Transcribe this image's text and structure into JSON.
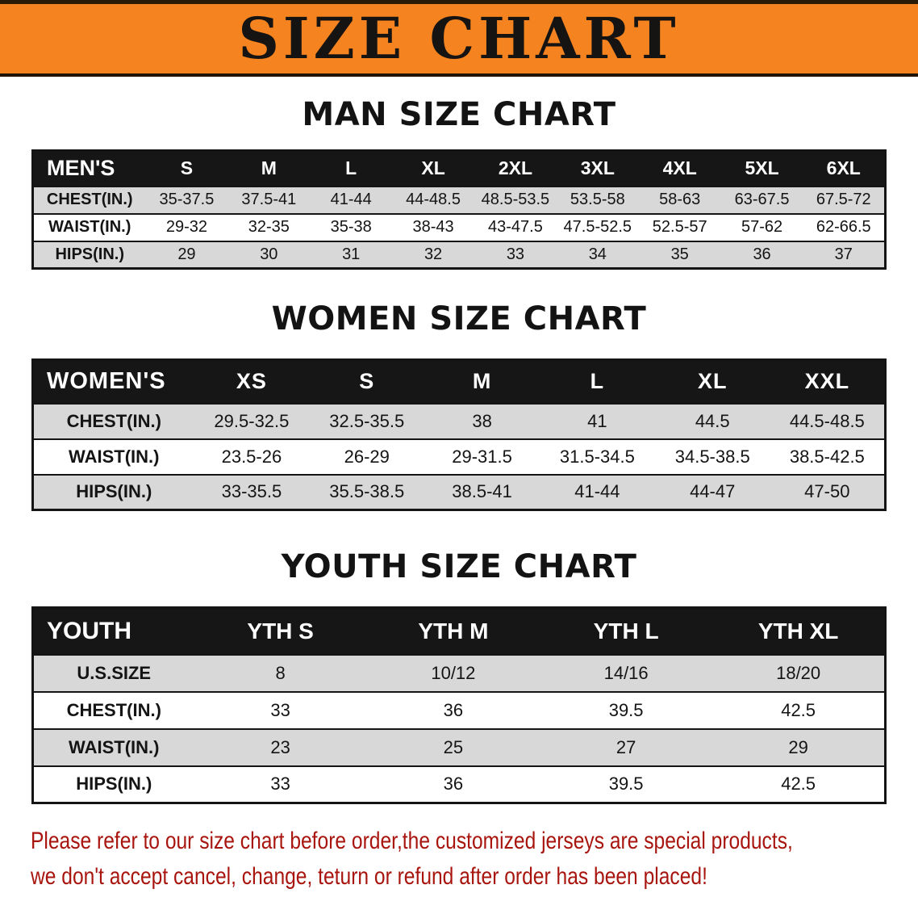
{
  "banner": {
    "title": "SIZE CHART"
  },
  "colors": {
    "banner_bg": "#f5831f",
    "header_bg": "#161616",
    "row_alt": "#d8d8d8",
    "note_text": "#a8150f"
  },
  "tables": {
    "men": {
      "section_title": "MAN SIZE CHART",
      "header": [
        "MEN'S",
        "S",
        "M",
        "L",
        "XL",
        "2XL",
        "3XL",
        "4XL",
        "5XL",
        "6XL"
      ],
      "rows": [
        {
          "label": "CHEST(IN.)",
          "values": [
            "35-37.5",
            "37.5-41",
            "41-44",
            "44-48.5",
            "48.5-53.5",
            "53.5-58",
            "58-63",
            "63-67.5",
            "67.5-72"
          ]
        },
        {
          "label": "WAIST(IN.)",
          "values": [
            "29-32",
            "32-35",
            "35-38",
            "38-43",
            "43-47.5",
            "47.5-52.5",
            "52.5-57",
            "57-62",
            "62-66.5"
          ]
        },
        {
          "label": "HIPS(IN.)",
          "values": [
            "29",
            "30",
            "31",
            "32",
            "33",
            "34",
            "35",
            "36",
            "37"
          ]
        }
      ]
    },
    "women": {
      "section_title": "WOMEN SIZE CHART",
      "header": [
        "WOMEN'S",
        "XS",
        "S",
        "M",
        "L",
        "XL",
        "XXL"
      ],
      "rows": [
        {
          "label": "CHEST(IN.)",
          "values": [
            "29.5-32.5",
            "32.5-35.5",
            "38",
            "41",
            "44.5",
            "44.5-48.5"
          ]
        },
        {
          "label": "WAIST(IN.)",
          "values": [
            "23.5-26",
            "26-29",
            "29-31.5",
            "31.5-34.5",
            "34.5-38.5",
            "38.5-42.5"
          ]
        },
        {
          "label": "HIPS(IN.)",
          "values": [
            "33-35.5",
            "35.5-38.5",
            "38.5-41",
            "41-44",
            "44-47",
            "47-50"
          ]
        }
      ]
    },
    "youth": {
      "section_title": "YOUTH SIZE CHART",
      "header": [
        "YOUTH",
        "YTH S",
        "YTH M",
        "YTH L",
        "YTH XL"
      ],
      "rows": [
        {
          "label": "U.S.SIZE",
          "values": [
            "8",
            "10/12",
            "14/16",
            "18/20"
          ]
        },
        {
          "label": "CHEST(IN.)",
          "values": [
            "33",
            "36",
            "39.5",
            "42.5"
          ]
        },
        {
          "label": "WAIST(IN.)",
          "values": [
            "23",
            "25",
            "27",
            "29"
          ]
        },
        {
          "label": "HIPS(IN.)",
          "values": [
            "33",
            "36",
            "39.5",
            "42.5"
          ]
        }
      ]
    }
  },
  "note": {
    "line1": "Please refer to our size chart before order,the customized jerseys are special products,",
    "line2": "we don't accept cancel, change, teturn or refund after order has been placed!"
  }
}
